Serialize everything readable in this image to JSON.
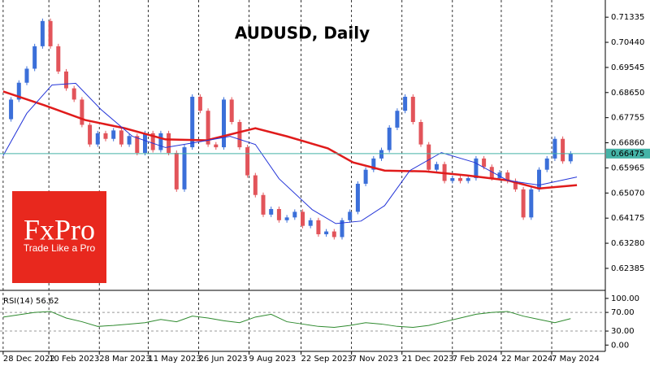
{
  "chart_data": [
    {
      "type": "candlestick",
      "title": "AUDUSD, Daily",
      "x": [
        0,
        5,
        10,
        15,
        20,
        25,
        30,
        35,
        40,
        45,
        50,
        55,
        60,
        65,
        70,
        75,
        80,
        85,
        90,
        95,
        100,
        105,
        110,
        115,
        120,
        125,
        130,
        135,
        140,
        145,
        150,
        155,
        160,
        165,
        170,
        175,
        180,
        185,
        190,
        195,
        200,
        205,
        210,
        215,
        220,
        225,
        230,
        235,
        240,
        245,
        250,
        255,
        260,
        265,
        270,
        275,
        280,
        285,
        290,
        295,
        300,
        305,
        310,
        315,
        320,
        325,
        330,
        335,
        340,
        345,
        350,
        355,
        360
      ],
      "values": [
        0.677,
        0.684,
        0.69,
        0.695,
        0.703,
        0.712,
        0.703,
        0.694,
        0.688,
        0.684,
        0.675,
        0.668,
        0.672,
        0.67,
        0.673,
        0.668,
        0.671,
        0.665,
        0.672,
        0.666,
        0.672,
        0.665,
        0.652,
        0.667,
        0.685,
        0.68,
        0.668,
        0.667,
        0.684,
        0.676,
        0.667,
        0.657,
        0.65,
        0.643,
        0.645,
        0.641,
        0.642,
        0.644,
        0.639,
        0.641,
        0.636,
        0.637,
        0.635,
        0.641,
        0.644,
        0.654,
        0.659,
        0.663,
        0.666,
        0.674,
        0.68,
        0.685,
        0.676,
        0.668,
        0.659,
        0.661,
        0.655,
        0.656,
        0.655,
        0.656,
        0.663,
        0.66,
        0.656,
        0.658,
        0.655,
        0.652,
        0.642,
        0.652,
        0.659,
        0.663,
        0.67,
        0.662,
        0.66475
      ],
      "up_color": "#3b6fd9",
      "down_color": "#e2545a",
      "overlays": [
        {
          "color": "#e01b1b",
          "x": [
            0,
            26,
            52,
            77,
            103,
            129,
            160,
            180,
            206,
            222,
            242,
            268,
            294,
            320,
            340,
            364
          ],
          "values": [
            0.6869,
            0.682,
            0.6767,
            0.6738,
            0.6698,
            0.6695,
            0.6738,
            0.6709,
            0.6666,
            0.6616,
            0.6587,
            0.6584,
            0.657,
            0.6552,
            0.6523,
            0.6535
          ]
        },
        {
          "color": "#2334d8",
          "x": [
            0,
            15,
            31,
            46,
            62,
            82,
            103,
            124,
            144,
            160,
            175,
            196,
            211,
            227,
            242,
            258,
            278,
            299,
            320,
            340,
            364
          ],
          "values": [
            0.664,
            0.6791,
            0.6892,
            0.6898,
            0.6805,
            0.6709,
            0.6669,
            0.6689,
            0.6709,
            0.668,
            0.6558,
            0.6448,
            0.6398,
            0.6407,
            0.6462,
            0.6587,
            0.6651,
            0.6616,
            0.6552,
            0.6535,
            0.6564
          ]
        }
      ],
      "current_price": 0.66475,
      "current_price_color": "#45b3a7",
      "xlim": [
        -2,
        382
      ],
      "xticks": [
        {
          "value": 0,
          "label": "28 Dec 2022"
        },
        {
          "value": 29,
          "label": "10 Feb 2023"
        },
        {
          "value": 61,
          "label": "28 Mar 2023"
        },
        {
          "value": 92,
          "label": "11 May 2023"
        },
        {
          "value": 124,
          "label": "26 Jun 2023"
        },
        {
          "value": 156,
          "label": "9 Aug 2023"
        },
        {
          "value": 189,
          "label": "22 Sep 2023"
        },
        {
          "value": 221,
          "label": "7 Nov 2023"
        },
        {
          "value": 253,
          "label": "21 Dec 2023"
        },
        {
          "value": 285,
          "label": "7 Feb 2024"
        },
        {
          "value": 316,
          "label": "22 Mar 2024"
        },
        {
          "value": 348,
          "label": "7 May 2024"
        }
      ],
      "ylim": [
        0.6163,
        0.7189
      ],
      "yticks": [
        {
          "value": 0.71335,
          "label": "0.71335"
        },
        {
          "value": 0.7044,
          "label": "0.70440"
        },
        {
          "value": 0.69545,
          "label": "0.69545"
        },
        {
          "value": 0.6865,
          "label": "0.68650"
        },
        {
          "value": 0.67755,
          "label": "0.67755"
        },
        {
          "value": 0.6686,
          "label": "0.66860"
        },
        {
          "value": 0.65965,
          "label": "0.65965"
        },
        {
          "value": 0.6507,
          "label": "0.65070"
        },
        {
          "value": 0.64175,
          "label": "0.64175"
        },
        {
          "value": 0.6328,
          "label": "0.63280"
        },
        {
          "value": 0.62385,
          "label": "0.62385"
        }
      ],
      "grid": "x"
    },
    {
      "type": "line",
      "label": "RSI(14) 56.62",
      "color": "#2e8a2e",
      "x": [
        0,
        10,
        20,
        30,
        40,
        50,
        60,
        70,
        80,
        90,
        100,
        110,
        120,
        130,
        140,
        150,
        160,
        170,
        180,
        190,
        200,
        210,
        220,
        230,
        240,
        250,
        260,
        270,
        280,
        290,
        300,
        310,
        320,
        330,
        340,
        350,
        360
      ],
      "values": [
        60,
        65,
        70,
        72,
        58,
        50,
        40,
        42,
        45,
        48,
        55,
        50,
        62,
        58,
        52,
        48,
        60,
        66,
        50,
        45,
        40,
        38,
        42,
        48,
        45,
        40,
        38,
        42,
        50,
        58,
        66,
        70,
        72,
        62,
        55,
        48,
        56.62
      ],
      "levels": [
        70,
        30
      ],
      "xlim": [
        -2,
        382
      ],
      "ylim": [
        -10,
        112
      ],
      "yticks": [
        {
          "value": 100,
          "label": "100.00"
        },
        {
          "value": 70,
          "label": "70.00"
        },
        {
          "value": 30,
          "label": "30.00"
        },
        {
          "value": 0,
          "label": "0.00"
        }
      ]
    }
  ],
  "logo": {
    "brand": "FxPro",
    "tagline": "Trade Like a Pro"
  }
}
